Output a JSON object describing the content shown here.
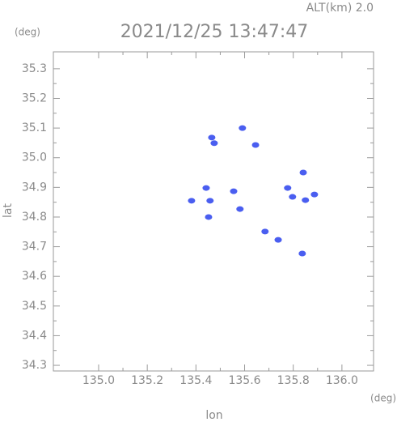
{
  "chart_data": {
    "type": "scatter",
    "title": "2021/12/25 13:47:47",
    "subtitle": "ALT(km) 2.0",
    "y_unit": "(deg)",
    "x_unit": "(deg)",
    "x_label": "lon",
    "y_label": "lat",
    "color": "#4a5ef0",
    "x": [
      135.591,
      135.475,
      135.465,
      135.645,
      135.442,
      135.555,
      135.458,
      135.382,
      135.581,
      135.777,
      135.797,
      135.85,
      135.887,
      135.841,
      135.684,
      135.738,
      135.837,
      135.452
    ],
    "values": [
      35.1,
      35.049,
      35.068,
      35.043,
      34.898,
      34.887,
      34.855,
      34.855,
      34.827,
      34.898,
      34.868,
      34.857,
      34.876,
      34.95,
      34.751,
      34.723,
      34.677,
      34.8
    ],
    "xlim": [
      134.814,
      136.13
    ],
    "ylim": [
      34.281,
      35.357
    ],
    "xticks": [
      {
        "value": 135,
        "label": "135.0"
      },
      135.2,
      135.4,
      135.6,
      135.8,
      {
        "value": 136,
        "label": "136.0"
      }
    ],
    "yticks": [
      35.3,
      35.2,
      35.1,
      {
        "value": 35,
        "label": "35.0"
      },
      34.9,
      34.8,
      34.7,
      34.6,
      34.5,
      34.4,
      34.3
    ]
  }
}
